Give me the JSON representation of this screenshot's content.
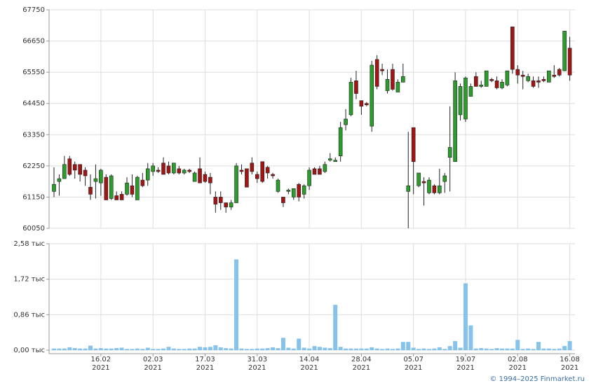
{
  "chart_data": [
    {
      "type": "candlestick",
      "open": [
        61350,
        61700,
        61800,
        62500,
        62300,
        62300,
        62100,
        61500,
        61700,
        61650,
        61850,
        61100,
        61200,
        61250,
        61250,
        61550,
        61050,
        61750,
        61750,
        62050,
        62100,
        62350,
        62250,
        62000,
        62150,
        62000,
        62100,
        61700,
        62150,
        61950,
        61850,
        61150,
        61150,
        60950,
        60800,
        60950,
        62100,
        62150,
        62350,
        61950,
        62400,
        62200,
        61950,
        61350,
        61150,
        61350,
        61150,
        61600,
        61250,
        61550,
        62150,
        62150,
        62050,
        62450,
        62400,
        62600,
        63700,
        64050,
        65250,
        64550,
        64450,
        63650,
        66000,
        65650,
        64900,
        65650,
        64850,
        65200,
        61350,
        63600,
        61550,
        61700,
        61300,
        61550,
        61300,
        61700,
        62550,
        62400,
        64050,
        63900,
        64700,
        65400,
        65050,
        65050,
        65300,
        65250,
        65000,
        65100,
        67150,
        65650,
        65450,
        65250,
        65250,
        65250,
        65300,
        65200,
        65450,
        65650,
        65600,
        66400
      ],
      "high": [
        62200,
        61950,
        62600,
        62600,
        62400,
        62300,
        62200,
        61950,
        62300,
        62150,
        61950,
        61950,
        61350,
        61350,
        61850,
        61950,
        61900,
        62000,
        62350,
        62350,
        62200,
        62550,
        62400,
        62350,
        62250,
        62150,
        62150,
        62050,
        62550,
        62050,
        62000,
        61350,
        61350,
        60950,
        61050,
        62350,
        62300,
        62150,
        62550,
        62050,
        62400,
        62250,
        62000,
        61800,
        61150,
        61450,
        61450,
        61650,
        61600,
        62200,
        62200,
        62250,
        62400,
        62700,
        62550,
        63800,
        64250,
        65350,
        65600,
        64550,
        64500,
        65950,
        66150,
        65850,
        65650,
        65850,
        65300,
        65850,
        63450,
        63600,
        62000,
        61850,
        61850,
        61600,
        62150,
        62000,
        64350,
        65550,
        65150,
        65400,
        65150,
        65550,
        65250,
        65600,
        65350,
        65400,
        65300,
        65600,
        67150,
        65800,
        65600,
        65500,
        65400,
        65400,
        65400,
        65600,
        65800,
        65700,
        67000,
        66800
      ],
      "low": [
        61150,
        61200,
        61800,
        61900,
        61800,
        61700,
        61550,
        61050,
        61100,
        61200,
        61050,
        61050,
        61050,
        61050,
        61200,
        61150,
        61050,
        61500,
        61550,
        61900,
        62000,
        61950,
        61950,
        61950,
        61950,
        61950,
        62000,
        61700,
        61650,
        61650,
        61250,
        60600,
        60700,
        60600,
        60700,
        60950,
        61950,
        61500,
        61950,
        61650,
        61650,
        61800,
        61800,
        61300,
        60800,
        61250,
        61050,
        61000,
        61100,
        61400,
        61950,
        61950,
        62000,
        62400,
        62400,
        62400,
        63500,
        64000,
        64600,
        64050,
        64350,
        63450,
        64950,
        65450,
        64800,
        64900,
        64850,
        65200,
        60050,
        61250,
        61500,
        60850,
        61250,
        61250,
        61250,
        61300,
        61350,
        62400,
        63850,
        63800,
        64700,
        65050,
        65000,
        65050,
        65200,
        64950,
        64950,
        65050,
        65500,
        65150,
        64950,
        65200,
        65000,
        65000,
        65200,
        65200,
        65350,
        65400,
        65600,
        65250
      ],
      "close": [
        61600,
        61800,
        62300,
        61950,
        62100,
        61950,
        61900,
        61250,
        61800,
        62100,
        61050,
        61900,
        61050,
        61050,
        61650,
        61250,
        61850,
        61550,
        62150,
        62250,
        62050,
        61950,
        62000,
        62350,
        62000,
        62100,
        62050,
        62000,
        61650,
        61700,
        61650,
        60900,
        60950,
        60800,
        60950,
        62250,
        62050,
        61500,
        62050,
        61800,
        61700,
        62000,
        61900,
        61750,
        60950,
        61400,
        61450,
        61150,
        61550,
        62100,
        61950,
        61950,
        62300,
        62500,
        62450,
        63600,
        63900,
        65200,
        64800,
        64350,
        64400,
        65800,
        65050,
        65600,
        65300,
        64950,
        65200,
        65400,
        61550,
        62400,
        62000,
        61650,
        61750,
        61300,
        61550,
        61900,
        62900,
        65250,
        65050,
        65350,
        65050,
        65050,
        65100,
        65600,
        65250,
        65000,
        65200,
        65600,
        65650,
        65450,
        65400,
        65400,
        65050,
        65200,
        65250,
        65600,
        65400,
        65450,
        67000,
        65450
      ],
      "up_color": "#2a9d2a",
      "down_color": "#a31515",
      "ylim": [
        60050,
        67750
      ],
      "yticks": [
        60050,
        61150,
        62250,
        63350,
        64450,
        65550,
        66650,
        67750
      ],
      "grid": true
    },
    {
      "type": "bar",
      "categories": [
        null,
        null,
        null,
        null,
        null,
        null,
        null,
        null,
        null,
        "16.02\n2021",
        null,
        null,
        null,
        null,
        null,
        null,
        null,
        null,
        null,
        "02.03\n2021",
        null,
        null,
        null,
        null,
        null,
        null,
        null,
        null,
        null,
        "17.03\n2021",
        null,
        null,
        null,
        null,
        null,
        null,
        null,
        null,
        null,
        "31.03\n2021",
        null,
        null,
        null,
        null,
        null,
        null,
        null,
        null,
        null,
        "14.04\n2021",
        null,
        null,
        null,
        null,
        null,
        null,
        null,
        null,
        null,
        "28.04\n2021",
        null,
        null,
        null,
        null,
        null,
        null,
        null,
        null,
        null,
        "05.07\n2021",
        null,
        null,
        null,
        null,
        null,
        null,
        null,
        null,
        null,
        "19.07\n2021",
        null,
        null,
        null,
        null,
        null,
        null,
        null,
        null,
        null,
        "02.08\n2021",
        null,
        null,
        null,
        null,
        null,
        null,
        null,
        null,
        null,
        "16.08\n2021"
      ],
      "values": [
        0.04,
        0.04,
        0.04,
        0.07,
        0.05,
        0.04,
        0.04,
        0.11,
        0.04,
        0.05,
        0.04,
        0.04,
        0.05,
        0.06,
        0.03,
        0.03,
        0.04,
        0.03,
        0.06,
        0.03,
        0.03,
        0.04,
        0.08,
        0.04,
        0.03,
        0.03,
        0.04,
        0.04,
        0.08,
        0.07,
        0.08,
        0.12,
        0.07,
        0.05,
        0.04,
        2.2,
        0.04,
        0.03,
        0.03,
        0.04,
        0.04,
        0.05,
        0.07,
        0.05,
        0.3,
        0.06,
        0.04,
        0.28,
        0.06,
        0.04,
        0.1,
        0.08,
        0.06,
        0.05,
        1.1,
        0.08,
        0.04,
        0.04,
        0.04,
        0.04,
        0.04,
        0.07,
        0.04,
        0.03,
        0.04,
        0.03,
        0.04,
        0.2,
        0.2,
        0.06,
        0.03,
        0.04,
        0.03,
        0.04,
        0.07,
        0.03,
        0.1,
        0.22,
        0.06,
        1.62,
        0.6,
        0.04,
        0.05,
        0.04,
        0.03,
        0.05,
        0.04,
        0.04,
        0.04,
        0.25,
        0.03,
        0.04,
        0.03,
        0.2,
        0.04,
        0.04,
        0.03,
        0.04,
        0.1,
        0.22
      ],
      "color": "#86c3ec",
      "ylim": [
        0,
        2.58
      ],
      "yticks": [
        {
          "value": 0,
          "label": "0,00 тыс"
        },
        {
          "value": 0.86,
          "label": "0,86 тыс"
        },
        {
          "value": 1.72,
          "label": "1,72 тыс"
        },
        {
          "value": 2.58,
          "label": "2,58 тыс"
        }
      ],
      "grid": true
    }
  ],
  "footer": "© 1994–2025 Finmarket.ru"
}
